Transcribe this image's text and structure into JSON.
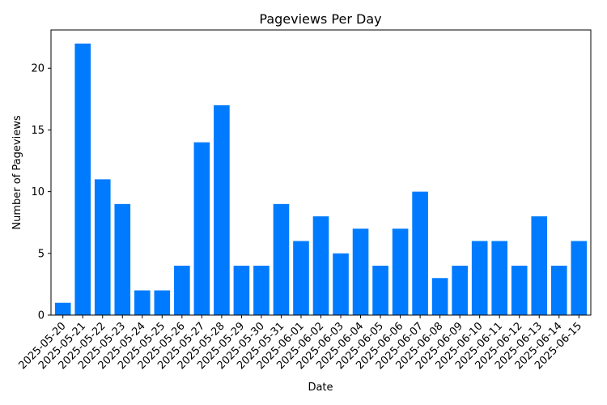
{
  "chart_data": {
    "type": "bar",
    "title": "Pageviews Per Day",
    "xlabel": "Date",
    "ylabel": "Number of Pageviews",
    "categories": [
      "2025-05-20",
      "2025-05-21",
      "2025-05-22",
      "2025-05-23",
      "2025-05-24",
      "2025-05-25",
      "2025-05-26",
      "2025-05-27",
      "2025-05-28",
      "2025-05-29",
      "2025-05-30",
      "2025-05-31",
      "2025-06-01",
      "2025-06-02",
      "2025-06-03",
      "2025-06-04",
      "2025-06-05",
      "2025-06-06",
      "2025-06-07",
      "2025-06-08",
      "2025-06-09",
      "2025-06-10",
      "2025-06-11",
      "2025-06-12",
      "2025-06-13",
      "2025-06-14",
      "2025-06-15"
    ],
    "values": [
      1,
      22,
      11,
      9,
      2,
      2,
      4,
      14,
      17,
      4,
      4,
      9,
      6,
      8,
      5,
      7,
      4,
      7,
      10,
      3,
      4,
      6,
      6,
      4,
      8,
      4,
      6
    ],
    "ylim": [
      0,
      23.1
    ],
    "yticks": [
      0,
      5,
      10,
      15,
      20
    ],
    "bar_color": "#007bff",
    "grid": false,
    "legend": "none"
  }
}
